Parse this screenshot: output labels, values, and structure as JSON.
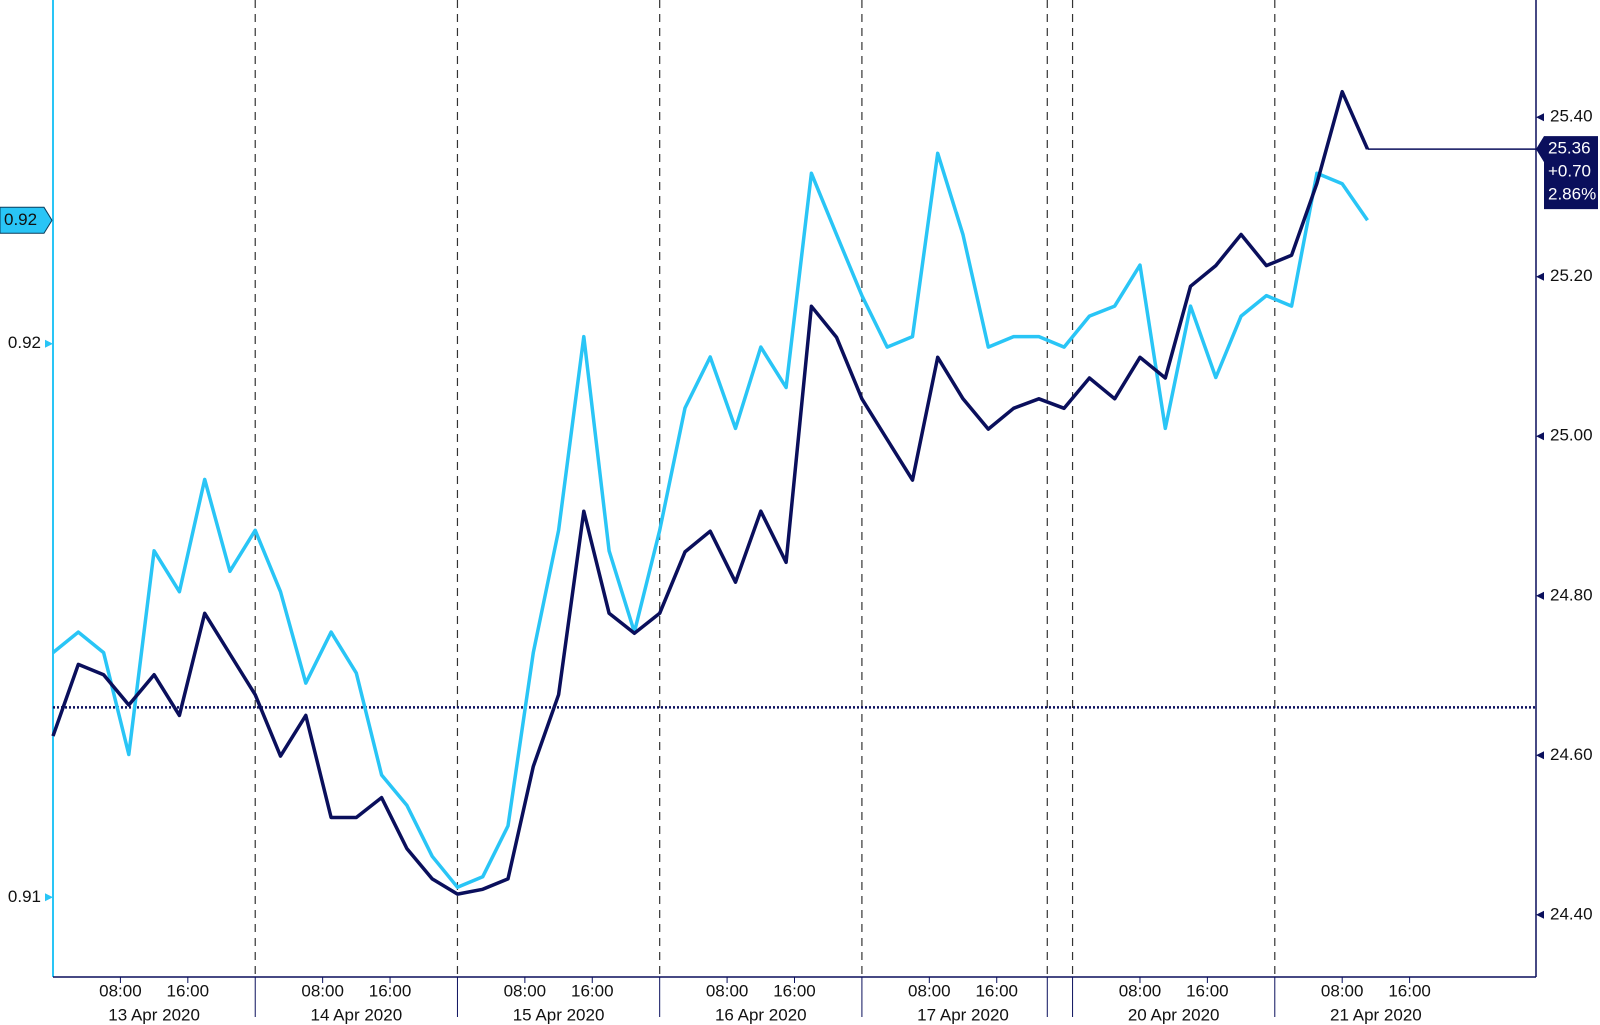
{
  "chart_data": {
    "type": "line",
    "x": [
      0,
      3,
      6,
      9,
      12,
      15,
      18,
      21,
      24,
      27,
      30,
      33,
      36,
      39,
      42,
      45,
      48,
      51,
      54,
      57,
      60,
      63,
      66,
      69,
      72,
      75,
      78,
      81,
      84,
      87,
      90,
      93,
      96,
      99,
      102,
      105,
      108,
      111,
      114,
      117,
      120,
      123,
      126,
      129,
      132,
      135,
      138,
      141,
      144,
      147,
      150,
      153,
      156
    ],
    "xlim": [
      0,
      176
    ],
    "xticks": [
      {
        "value": 8,
        "label": "08:00"
      },
      {
        "value": 16,
        "label": "16:00"
      },
      {
        "value": 32,
        "label": "08:00"
      },
      {
        "value": 40,
        "label": "16:00"
      },
      {
        "value": 56,
        "label": "08:00"
      },
      {
        "value": 64,
        "label": "16:00"
      },
      {
        "value": 80,
        "label": "08:00"
      },
      {
        "value": 88,
        "label": "16:00"
      },
      {
        "value": 104,
        "label": "08:00"
      },
      {
        "value": 112,
        "label": "16:00"
      },
      {
        "value": 129,
        "label": "08:00"
      },
      {
        "value": 137,
        "label": "16:00"
      },
      {
        "value": 153,
        "label": "08:00"
      },
      {
        "value": 161,
        "label": "16:00"
      }
    ],
    "xdates": [
      {
        "value": 12,
        "label": "13 Apr 2020"
      },
      {
        "value": 36,
        "label": "14 Apr 2020"
      },
      {
        "value": 60,
        "label": "15 Apr 2020"
      },
      {
        "value": 84,
        "label": "16 Apr 2020"
      },
      {
        "value": 108,
        "label": "17 Apr 2020"
      },
      {
        "value": 133,
        "label": "20 Apr 2020"
      },
      {
        "value": 157,
        "label": "21 Apr 2020"
      }
    ],
    "day_breaks": [
      24,
      48,
      72,
      96,
      118,
      121,
      145
    ],
    "ylim": [
      0.90856,
      0.92621
    ],
    "yticks": [
      0.91,
      0.92
    ],
    "y2lim": [
      24.322,
      25.547
    ],
    "y2ticks": [
      {
        "value": 24.4,
        "label": "24.40"
      },
      {
        "value": 24.6,
        "label": "24.60"
      },
      {
        "value": 24.8,
        "label": "24.80"
      },
      {
        "value": 25.0,
        "label": "25.00"
      },
      {
        "value": 25.2,
        "label": "25.20"
      },
      {
        "value": 25.4,
        "label": "25.40"
      }
    ],
    "reference_line": {
      "axis": "y2",
      "value": 24.66
    },
    "series": [
      {
        "color": "#29c5f6",
        "axis": "y",
        "last_label": "0.92",
        "values": [
          0.91442,
          0.91479,
          0.91442,
          0.91258,
          0.91626,
          0.91552,
          0.91755,
          0.91589,
          0.91663,
          0.91552,
          0.91387,
          0.91479,
          0.91405,
          0.91221,
          0.91166,
          0.91074,
          0.91018,
          0.91037,
          0.91129,
          0.91442,
          0.91663,
          0.92013,
          0.91626,
          0.91479,
          0.91663,
          0.91884,
          0.91976,
          0.91847,
          0.91994,
          0.91921,
          0.92308,
          0.92197,
          0.92087,
          0.91994,
          0.92013,
          0.92344,
          0.92197,
          0.91994,
          0.92013,
          0.92013,
          0.91994,
          0.9205,
          0.92068,
          0.92142,
          0.91847,
          0.92068,
          0.91939,
          0.9205,
          0.92087,
          0.92068,
          0.92308,
          0.92289,
          0.92223
        ]
      },
      {
        "color": "#0a0f5c",
        "axis": "y2",
        "last_label": "25.36",
        "change_label": "+0.70",
        "pct_change_label": "2.86%",
        "values": [
          24.624,
          24.714,
          24.701,
          24.663,
          24.701,
          24.65,
          24.778,
          24.727,
          24.676,
          24.599,
          24.65,
          24.522,
          24.522,
          24.547,
          24.483,
          24.445,
          24.426,
          24.432,
          24.445,
          24.586,
          24.676,
          24.906,
          24.778,
          24.753,
          24.778,
          24.855,
          24.881,
          24.817,
          24.906,
          24.842,
          25.163,
          25.124,
          25.047,
          24.996,
          24.945,
          25.099,
          25.047,
          25.009,
          25.035,
          25.047,
          25.035,
          25.073,
          25.047,
          25.099,
          25.073,
          25.188,
          25.214,
          25.253,
          25.214,
          25.227,
          25.317,
          25.432,
          25.36
        ]
      }
    ]
  }
}
